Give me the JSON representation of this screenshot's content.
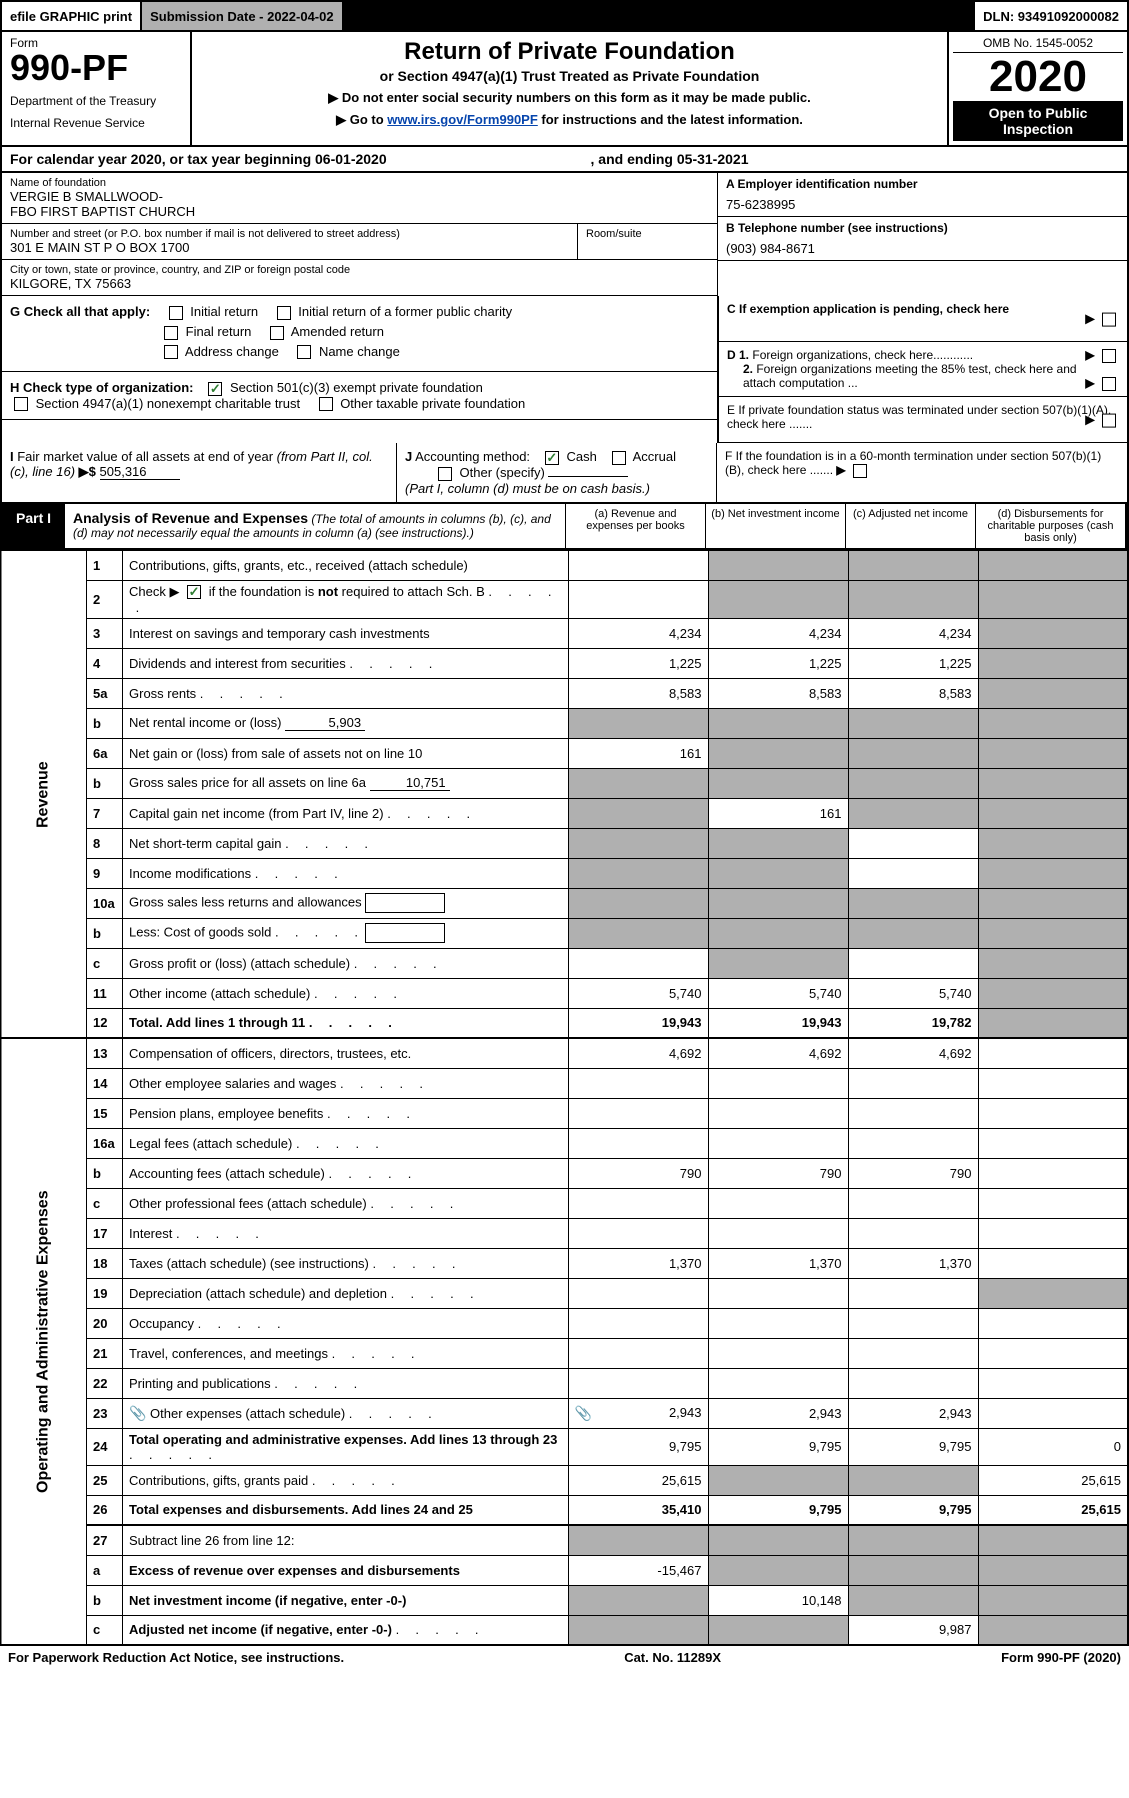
{
  "colors": {
    "black": "#000000",
    "white": "#ffffff",
    "grey": "#b0b0b0",
    "link": "#0645ad",
    "check_green": "#2e7d32"
  },
  "topbar": {
    "efile": "efile GRAPHIC print",
    "submission": "Submission Date - 2022-04-02",
    "dln": "DLN: 93491092000082"
  },
  "header": {
    "form_label": "Form",
    "form_number": "990-PF",
    "dept": "Department of the Treasury",
    "irs": "Internal Revenue Service",
    "title": "Return of Private Foundation",
    "subtitle": "or Section 4947(a)(1) Trust Treated as Private Foundation",
    "note1": "▶ Do not enter social security numbers on this form as it may be made public.",
    "note2_pre": "▶ Go to ",
    "note2_link": "www.irs.gov/Form990PF",
    "note2_post": " for instructions and the latest information.",
    "omb": "OMB No. 1545-0052",
    "year": "2020",
    "open_public": "Open to Public Inspection"
  },
  "calendar": {
    "text_pre": "For calendar year 2020, or tax year beginning ",
    "begin": "06-01-2020",
    "text_mid": " , and ending ",
    "end": "05-31-2021"
  },
  "info": {
    "name_label": "Name of foundation",
    "name": "VERGIE B SMALLWOOD-\nFBO FIRST BAPTIST CHURCH",
    "addr_label": "Number and street (or P.O. box number if mail is not delivered to street address)",
    "addr": "301 E MAIN ST P O BOX 1700",
    "room_label": "Room/suite",
    "city_label": "City or town, state or province, country, and ZIP or foreign postal code",
    "city": "KILGORE, TX  75663",
    "a_label": "A Employer identification number",
    "ein": "75-6238995",
    "b_label": "B Telephone number (see instructions)",
    "phone": "(903) 984-8671",
    "c_label": "C If exemption application is pending, check here",
    "d1_label": "D 1. Foreign organizations, check here............",
    "d2_label": "2. Foreign organizations meeting the 85% test, check here and attach computation ...",
    "e_label": "E  If private foundation status was terminated under section 507(b)(1)(A), check here .......",
    "f_label": "F  If the foundation is in a 60-month termination under section 507(b)(1)(B), check here ......."
  },
  "g": {
    "label": "G Check all that apply:",
    "initial": "Initial return",
    "initial_former": "Initial return of a former public charity",
    "final": "Final return",
    "amended": "Amended return",
    "addr_change": "Address change",
    "name_change": "Name change"
  },
  "h": {
    "label": "H Check type of organization:",
    "c3": "Section 501(c)(3) exempt private foundation",
    "4947": "Section 4947(a)(1) nonexempt charitable trust",
    "other_taxable": "Other taxable private foundation"
  },
  "i": {
    "label": "I Fair market value of all assets at end of year (from Part II, col. (c), line 16) ▶$",
    "value": "505,316"
  },
  "j": {
    "label": "J Accounting method:",
    "cash": "Cash",
    "accrual": "Accrual",
    "other": "Other (specify)",
    "note": "(Part I, column (d) must be on cash basis.)"
  },
  "part1": {
    "label": "Part I",
    "title": "Analysis of Revenue and Expenses",
    "note": "(The total of amounts in columns (b), (c), and (d) may not necessarily equal the amounts in column (a) (see instructions).)",
    "col_a": "(a)  Revenue and expenses per books",
    "col_b": "(b)  Net investment income",
    "col_c": "(c)  Adjusted net income",
    "col_d": "(d)  Disbursements for charitable purposes (cash basis only)"
  },
  "sidebars": {
    "revenue": "Revenue",
    "expenses": "Operating and Administrative Expenses"
  },
  "rows": [
    {
      "n": "1",
      "desc": "Contributions, gifts, grants, etc., received (attach schedule)",
      "a": "",
      "b_shade": true,
      "c_shade": true,
      "d_shade": true
    },
    {
      "n": "2",
      "desc": "Check ▶ ☑ if the foundation is not required to attach Sch. B",
      "a": "",
      "b_shade": true,
      "c_shade": true,
      "d_shade": true,
      "dots": true,
      "check": true
    },
    {
      "n": "3",
      "desc": "Interest on savings and temporary cash investments",
      "a": "4,234",
      "b": "4,234",
      "c": "4,234",
      "d_shade": true
    },
    {
      "n": "4",
      "desc": "Dividends and interest from securities",
      "a": "1,225",
      "b": "1,225",
      "c": "1,225",
      "d_shade": true,
      "dots": true
    },
    {
      "n": "5a",
      "desc": "Gross rents",
      "a": "8,583",
      "b": "8,583",
      "c": "8,583",
      "d_shade": true,
      "dots": true
    },
    {
      "n": "b",
      "desc": "Net rental income or (loss)",
      "inline": "5,903",
      "a_shade": true,
      "b_shade": true,
      "c_shade": true,
      "d_shade": true
    },
    {
      "n": "6a",
      "desc": "Net gain or (loss) from sale of assets not on line 10",
      "a": "161",
      "b_shade": true,
      "c_shade": true,
      "d_shade": true
    },
    {
      "n": "b",
      "desc": "Gross sales price for all assets on line 6a",
      "inline": "10,751",
      "a_shade": true,
      "b_shade": true,
      "c_shade": true,
      "d_shade": true
    },
    {
      "n": "7",
      "desc": "Capital gain net income (from Part IV, line 2)",
      "a_shade": true,
      "b": "161",
      "c_shade": true,
      "d_shade": true,
      "dots": true
    },
    {
      "n": "8",
      "desc": "Net short-term capital gain",
      "a_shade": true,
      "b_shade": true,
      "c": "",
      "d_shade": true,
      "dots": true
    },
    {
      "n": "9",
      "desc": "Income modifications",
      "a_shade": true,
      "b_shade": true,
      "c": "",
      "d_shade": true,
      "dots": true
    },
    {
      "n": "10a",
      "desc": "Gross sales less returns and allowances",
      "box": true,
      "a_shade": true,
      "b_shade": true,
      "c_shade": true,
      "d_shade": true
    },
    {
      "n": "b",
      "desc": "Less: Cost of goods sold",
      "box": true,
      "a_shade": true,
      "b_shade": true,
      "c_shade": true,
      "d_shade": true,
      "dots": true
    },
    {
      "n": "c",
      "desc": "Gross profit or (loss) (attach schedule)",
      "a": "",
      "b_shade": true,
      "c": "",
      "d_shade": true,
      "dots": true
    },
    {
      "n": "11",
      "desc": "Other income (attach schedule)",
      "a": "5,740",
      "b": "5,740",
      "c": "5,740",
      "d_shade": true,
      "dots": true
    },
    {
      "n": "12",
      "desc": "Total. Add lines 1 through 11",
      "a": "19,943",
      "b": "19,943",
      "c": "19,782",
      "d_shade": true,
      "bold": true,
      "dots": true
    },
    {
      "n": "13",
      "desc": "Compensation of officers, directors, trustees, etc.",
      "a": "4,692",
      "b": "4,692",
      "c": "4,692",
      "d": "",
      "section": "expenses"
    },
    {
      "n": "14",
      "desc": "Other employee salaries and wages",
      "a": "",
      "b": "",
      "c": "",
      "d": "",
      "dots": true
    },
    {
      "n": "15",
      "desc": "Pension plans, employee benefits",
      "a": "",
      "b": "",
      "c": "",
      "d": "",
      "dots": true
    },
    {
      "n": "16a",
      "desc": "Legal fees (attach schedule)",
      "a": "",
      "b": "",
      "c": "",
      "d": "",
      "dots": true
    },
    {
      "n": "b",
      "desc": "Accounting fees (attach schedule)",
      "a": "790",
      "b": "790",
      "c": "790",
      "d": "",
      "dots": true
    },
    {
      "n": "c",
      "desc": "Other professional fees (attach schedule)",
      "a": "",
      "b": "",
      "c": "",
      "d": "",
      "dots": true
    },
    {
      "n": "17",
      "desc": "Interest",
      "a": "",
      "b": "",
      "c": "",
      "d": "",
      "dots": true
    },
    {
      "n": "18",
      "desc": "Taxes (attach schedule) (see instructions)",
      "a": "1,370",
      "b": "1,370",
      "c": "1,370",
      "d": "",
      "dots": true
    },
    {
      "n": "19",
      "desc": "Depreciation (attach schedule) and depletion",
      "a": "",
      "b": "",
      "c": "",
      "d_shade": true,
      "dots": true
    },
    {
      "n": "20",
      "desc": "Occupancy",
      "a": "",
      "b": "",
      "c": "",
      "d": "",
      "dots": true
    },
    {
      "n": "21",
      "desc": "Travel, conferences, and meetings",
      "a": "",
      "b": "",
      "c": "",
      "d": "",
      "dots": true
    },
    {
      "n": "22",
      "desc": "Printing and publications",
      "a": "",
      "b": "",
      "c": "",
      "d": "",
      "dots": true
    },
    {
      "n": "23",
      "desc": "Other expenses (attach schedule)",
      "a": "2,943",
      "b": "2,943",
      "c": "2,943",
      "d": "",
      "clip": true,
      "dots": true
    },
    {
      "n": "24",
      "desc": "Total operating and administrative expenses. Add lines 13 through 23",
      "a": "9,795",
      "b": "9,795",
      "c": "9,795",
      "d": "0",
      "bold_desc": true,
      "dots": true
    },
    {
      "n": "25",
      "desc": "Contributions, gifts, grants paid",
      "a": "25,615",
      "b_shade": true,
      "c_shade": true,
      "d": "25,615",
      "dots": true
    },
    {
      "n": "26",
      "desc": "Total expenses and disbursements. Add lines 24 and 25",
      "a": "35,410",
      "b": "9,795",
      "c": "9,795",
      "d": "25,615",
      "bold": true
    },
    {
      "n": "27",
      "desc": "Subtract line 26 from line 12:",
      "a_shade": true,
      "b_shade": true,
      "c_shade": true,
      "d_shade": true,
      "section": "bottom"
    },
    {
      "n": "a",
      "desc": "Excess of revenue over expenses and disbursements",
      "a": "-15,467",
      "b_shade": true,
      "c_shade": true,
      "d_shade": true,
      "bold_desc": true
    },
    {
      "n": "b",
      "desc": "Net investment income (if negative, enter -0-)",
      "a_shade": true,
      "b": "10,148",
      "c_shade": true,
      "d_shade": true,
      "bold_desc": true
    },
    {
      "n": "c",
      "desc": "Adjusted net income (if negative, enter -0-)",
      "a_shade": true,
      "b_shade": true,
      "c": "9,987",
      "d_shade": true,
      "bold_desc": true,
      "dots": true
    }
  ],
  "footer": {
    "left": "For Paperwork Reduction Act Notice, see instructions.",
    "mid": "Cat. No. 11289X",
    "right": "Form 990-PF (2020)"
  }
}
